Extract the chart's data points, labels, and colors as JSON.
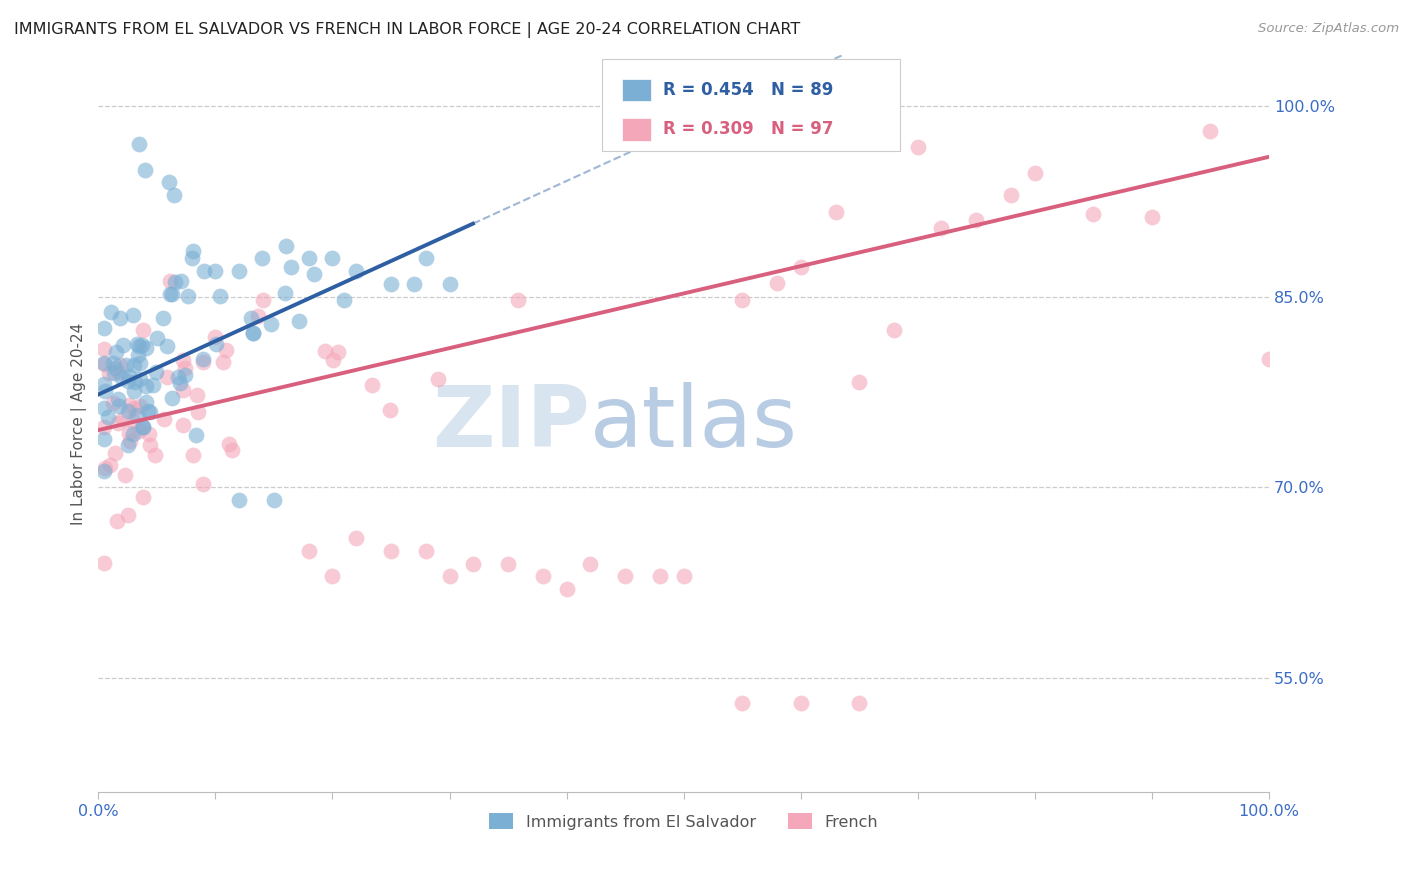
{
  "title": "IMMIGRANTS FROM EL SALVADOR VS FRENCH IN LABOR FORCE | AGE 20-24 CORRELATION CHART",
  "source": "Source: ZipAtlas.com",
  "ylabel": "In Labor Force | Age 20-24",
  "xlim": [
    0.0,
    1.0
  ],
  "ylim": [
    0.46,
    1.04
  ],
  "yticks": [
    0.55,
    0.7,
    0.85,
    1.0
  ],
  "yticklabels": [
    "55.0%",
    "70.0%",
    "85.0%",
    "100.0%"
  ],
  "xtick_labels_show": [
    "0.0%",
    "100.0%"
  ],
  "blue_R": 0.454,
  "blue_N": 89,
  "pink_R": 0.309,
  "pink_N": 97,
  "blue_color": "#7BAFD4",
  "pink_color": "#F4A7B9",
  "blue_line_color": "#2E5FA3",
  "pink_line_color": "#D95F7F",
  "legend_blue_label": "Immigrants from El Salvador",
  "legend_pink_label": "French",
  "watermark_zip": "ZIP",
  "watermark_atlas": "atlas",
  "background_color": "#ffffff",
  "grid_color": "#cccccc",
  "title_color": "#222222",
  "axis_label_color": "#555555",
  "tick_label_color": "#3B6DC7",
  "blue_line_start_x": 0.0,
  "blue_line_end_solid_x": 0.32,
  "blue_line_end_dash_x": 1.0,
  "pink_line_start_x": 0.0,
  "pink_line_end_x": 1.0,
  "blue_line_y_at_0": 0.773,
  "blue_line_slope": 0.42,
  "pink_line_y_at_0": 0.745,
  "pink_line_slope": 0.215
}
